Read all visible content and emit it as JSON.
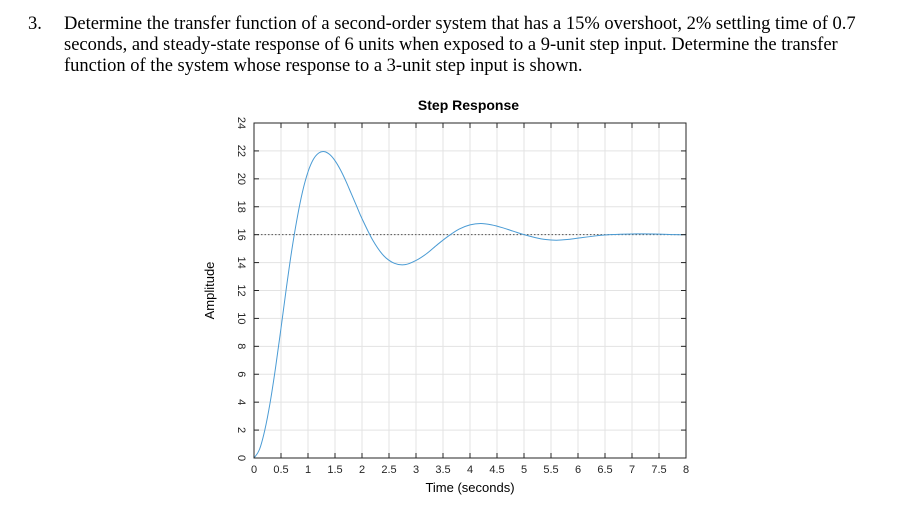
{
  "question": {
    "number": "3.",
    "text": "Determine the transfer function of a second-order system that has a 15% overshoot, 2% settling time of 0.7 seconds, and steady-state response of 6 units when exposed to a 9-unit step input. Determine the transfer function of the system whose response to a 3-unit step input is shown."
  },
  "chart_data": {
    "type": "line",
    "title": "Step Response",
    "xlabel": "Time (seconds)",
    "ylabel": "Amplitude",
    "xlim": [
      0,
      8
    ],
    "ylim": [
      0,
      24
    ],
    "xticks": [
      "0",
      "0.5",
      "1",
      "1.5",
      "2",
      "2.5",
      "3",
      "3.5",
      "4",
      "4.5",
      "5",
      "5.5",
      "6",
      "6.5",
      "7",
      "7.5",
      "8"
    ],
    "yticks": [
      "0",
      "2",
      "4",
      "6",
      "8",
      "10",
      "12",
      "14",
      "16",
      "18",
      "20",
      "22",
      "24"
    ],
    "grid": true,
    "reference_line": {
      "y": 16,
      "style": "dotted"
    },
    "series": [
      {
        "color": "#4a9bd4",
        "x": [
          0,
          0.1,
          0.2,
          0.3,
          0.4,
          0.5,
          0.6,
          0.7,
          0.8,
          0.9,
          1.0,
          1.1,
          1.2,
          1.3,
          1.4,
          1.5,
          1.6,
          1.7,
          1.8,
          1.9,
          2.0,
          2.2,
          2.4,
          2.6,
          2.8,
          3.0,
          3.2,
          3.4,
          3.6,
          3.8,
          4.0,
          4.2,
          4.4,
          4.6,
          4.8,
          5.0,
          5.2,
          5.4,
          5.6,
          5.8,
          6.0,
          6.3,
          6.6,
          7.0,
          7.4,
          7.8,
          8.0
        ],
        "y": [
          0,
          0.6,
          2.0,
          4.0,
          6.5,
          9.3,
          12.2,
          14.9,
          17.2,
          19.1,
          20.5,
          21.4,
          21.85,
          21.95,
          21.75,
          21.3,
          20.65,
          19.85,
          18.95,
          18.05,
          17.15,
          15.6,
          14.5,
          13.95,
          13.85,
          14.15,
          14.65,
          15.3,
          15.9,
          16.4,
          16.7,
          16.8,
          16.7,
          16.5,
          16.25,
          16.0,
          15.8,
          15.65,
          15.6,
          15.65,
          15.75,
          15.9,
          16.0,
          16.05,
          16.05,
          16.0,
          16.0
        ]
      }
    ]
  }
}
